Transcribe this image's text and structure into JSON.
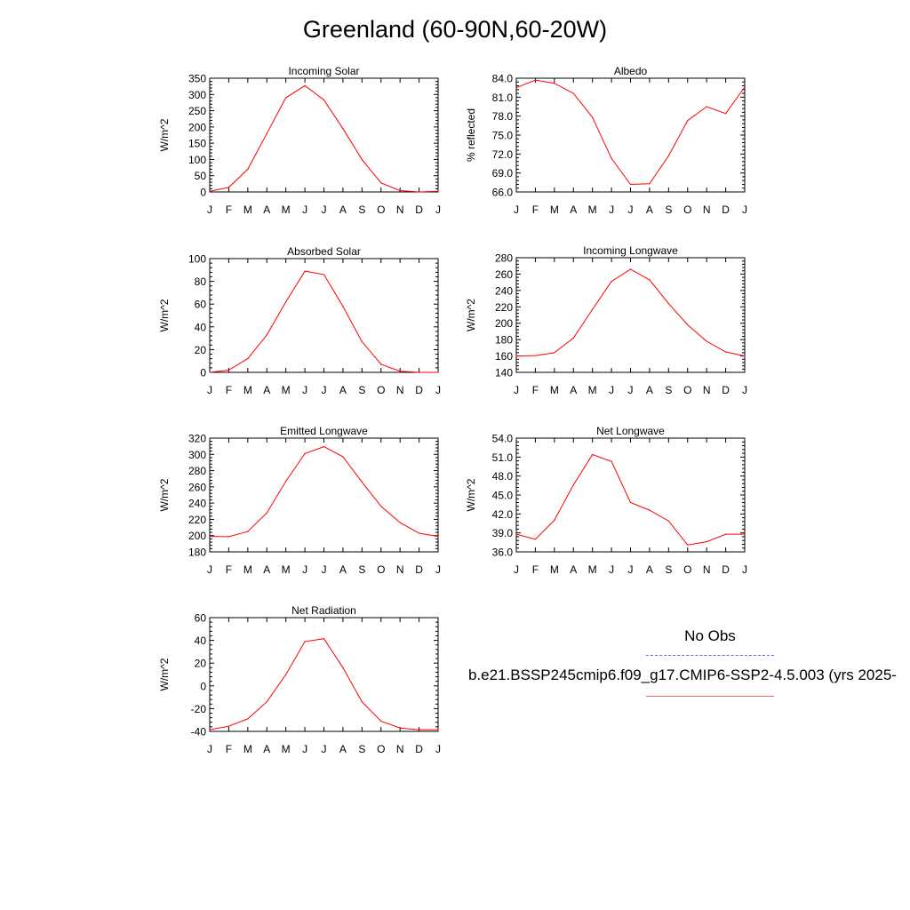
{
  "title": "Greenland (60-90N,60-20W)",
  "legend": {
    "obs_label": "No Obs",
    "model_label": "b.e21.BSSP245cmip6.f09_g17.CMIP6-SSP2-4.5.003 (yrs 2025-",
    "obs_color": "#6b6bd6",
    "model_color": "#ff0000"
  },
  "chart_data": [
    {
      "type": "line",
      "title": "Incoming Solar",
      "ylabel": "W/m^2",
      "x": [
        "J",
        "F",
        "M",
        "A",
        "M",
        "J",
        "J",
        "A",
        "S",
        "O",
        "N",
        "D",
        "J"
      ],
      "ylim": [
        0,
        350
      ],
      "yticks": [
        "0",
        "50",
        "100",
        "150",
        "200",
        "250",
        "300",
        "350"
      ],
      "series": [
        {
          "values": [
            2,
            14,
            70,
            180,
            290,
            327,
            283,
            195,
            100,
            28,
            4,
            0,
            2
          ]
        }
      ]
    },
    {
      "type": "line",
      "title": "Albedo",
      "ylabel": "% reflected",
      "x": [
        "J",
        "F",
        "M",
        "A",
        "M",
        "J",
        "J",
        "A",
        "S",
        "O",
        "N",
        "D",
        "J"
      ],
      "ylim": [
        66.0,
        84.0
      ],
      "yticks": [
        "66.0",
        "69.0",
        "72.0",
        "75.0",
        "78.0",
        "81.0",
        "84.0"
      ],
      "series": [
        {
          "values": [
            82.5,
            83.7,
            83.2,
            81.6,
            77.8,
            71.3,
            67.2,
            67.3,
            71.7,
            77.3,
            79.5,
            78.4,
            82.6
          ]
        }
      ]
    },
    {
      "type": "line",
      "title": "Absorbed Solar",
      "ylabel": "W/m^2",
      "x": [
        "J",
        "F",
        "M",
        "A",
        "M",
        "J",
        "J",
        "A",
        "S",
        "O",
        "N",
        "D",
        "J"
      ],
      "ylim": [
        0,
        100
      ],
      "yticks": [
        "0",
        "20",
        "40",
        "60",
        "80",
        "100"
      ],
      "series": [
        {
          "values": [
            0,
            2,
            12,
            33,
            62,
            89,
            86,
            58,
            27,
            7,
            1,
            0,
            0
          ]
        }
      ]
    },
    {
      "type": "line",
      "title": "Incoming Longwave",
      "ylabel": "W/m^2",
      "x": [
        "J",
        "F",
        "M",
        "A",
        "M",
        "J",
        "J",
        "A",
        "S",
        "O",
        "N",
        "D",
        "J"
      ],
      "ylim": [
        140,
        280
      ],
      "yticks": [
        "140",
        "160",
        "180",
        "200",
        "220",
        "240",
        "260",
        "280"
      ],
      "series": [
        {
          "values": [
            160,
            160.5,
            164,
            182,
            217,
            251,
            266,
            253,
            224,
            198,
            178,
            165,
            160
          ]
        }
      ]
    },
    {
      "type": "line",
      "title": "Emitted Longwave",
      "ylabel": "W/m^2",
      "x": [
        "J",
        "F",
        "M",
        "A",
        "M",
        "J",
        "J",
        "A",
        "S",
        "O",
        "N",
        "D",
        "J"
      ],
      "ylim": [
        180,
        320
      ],
      "yticks": [
        "180",
        "200",
        "220",
        "240",
        "260",
        "280",
        "300",
        "320"
      ],
      "series": [
        {
          "values": [
            199,
            198.7,
            205,
            228,
            267,
            301,
            309.5,
            297,
            266,
            236,
            216,
            203,
            199
          ]
        }
      ]
    },
    {
      "type": "line",
      "title": "Net Longwave",
      "ylabel": "W/m^2",
      "x": [
        "J",
        "F",
        "M",
        "A",
        "M",
        "J",
        "J",
        "A",
        "S",
        "O",
        "N",
        "D",
        "J"
      ],
      "ylim": [
        36.0,
        54.0
      ],
      "yticks": [
        "36.0",
        "39.0",
        "42.0",
        "45.0",
        "48.0",
        "51.0",
        "54.0"
      ],
      "series": [
        {
          "values": [
            38.8,
            38.0,
            41.0,
            46.6,
            51.4,
            50.3,
            43.8,
            42.6,
            40.9,
            37.1,
            37.6,
            38.8,
            38.8
          ]
        }
      ]
    },
    {
      "type": "line",
      "title": "Net Radiation",
      "ylabel": "W/m^2",
      "x": [
        "J",
        "F",
        "M",
        "A",
        "M",
        "J",
        "J",
        "A",
        "S",
        "O",
        "N",
        "D",
        "J"
      ],
      "ylim": [
        -40,
        60
      ],
      "yticks": [
        "-40",
        "-20",
        "0",
        "20",
        "40",
        "60"
      ],
      "series": [
        {
          "values": [
            -38.5,
            -35.5,
            -29,
            -14,
            10,
            39,
            41.5,
            16,
            -14,
            -31,
            -37,
            -38.5,
            -38.5
          ]
        }
      ]
    }
  ]
}
